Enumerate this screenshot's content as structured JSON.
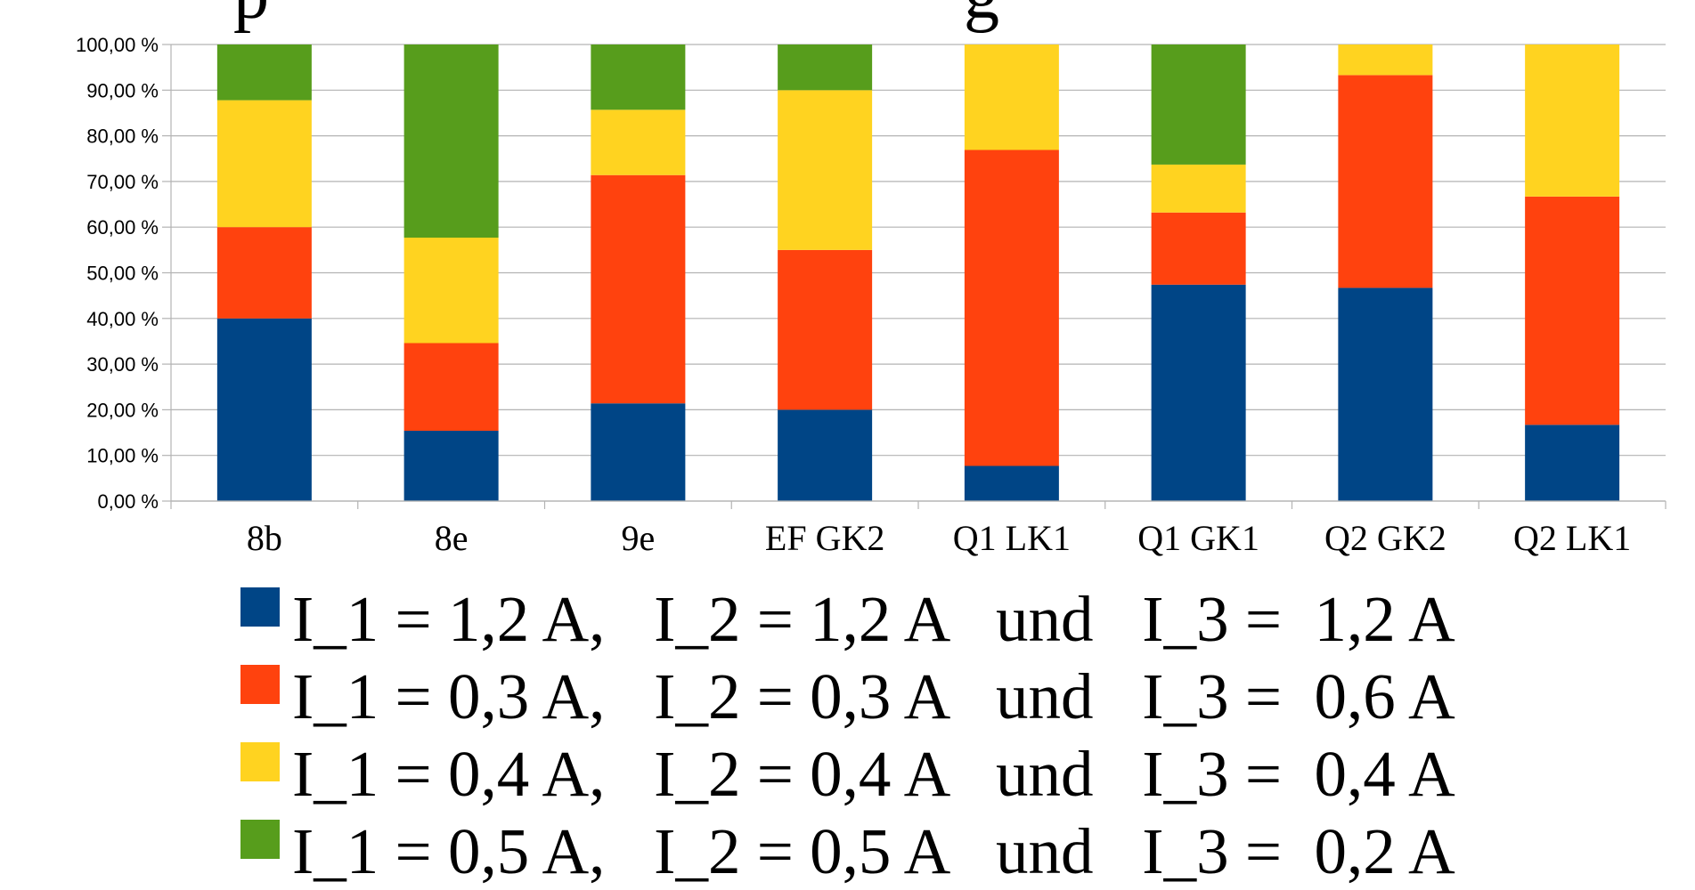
{
  "chart_data": {
    "type": "bar",
    "stacked": true,
    "title_fragment": "p g",
    "categories": [
      "8b",
      "8e",
      "9e",
      "EF GK2",
      "Q1 LK1",
      "Q1 GK1",
      "Q2 GK2",
      "Q2 LK1"
    ],
    "y_tick_labels": [
      "0,00 %",
      "10,00 %",
      "20,00 %",
      "30,00 %",
      "40,00 %",
      "50,00 %",
      "60,00 %",
      "70,00 %",
      "80,00 %",
      "90,00 %",
      "100,00 %"
    ],
    "ylim": [
      0,
      100
    ],
    "grid": true,
    "legend_position": "bottom",
    "series": [
      {
        "name": "I_1 = 1,2 A,   I_2 = 1,2 A   und   I_3 =  1,2 A",
        "color": "#004586",
        "values": [
          40.0,
          15.4,
          21.4,
          20.0,
          7.7,
          47.4,
          46.7,
          16.7
        ]
      },
      {
        "name": "I_1 = 0,3 A,   I_2 = 0,3 A   und   I_3 =  0,6 A",
        "color": "#ff420e",
        "values": [
          20.0,
          19.2,
          50.0,
          35.0,
          69.2,
          15.8,
          46.6,
          50.0
        ]
      },
      {
        "name": "I_1 = 0,4 A,   I_2 = 0,4 A   und   I_3 =  0,4 A",
        "color": "#ffd320",
        "values": [
          27.8,
          23.1,
          14.3,
          35.0,
          23.1,
          10.5,
          6.7,
          33.3
        ]
      },
      {
        "name": "I_1 = 0,5 A,   I_2 = 0,5 A   und   I_3 =  0,2 A",
        "color": "#579d1c",
        "values": [
          12.2,
          42.3,
          14.3,
          10.0,
          0.0,
          26.3,
          0.0,
          0.0
        ]
      }
    ]
  }
}
